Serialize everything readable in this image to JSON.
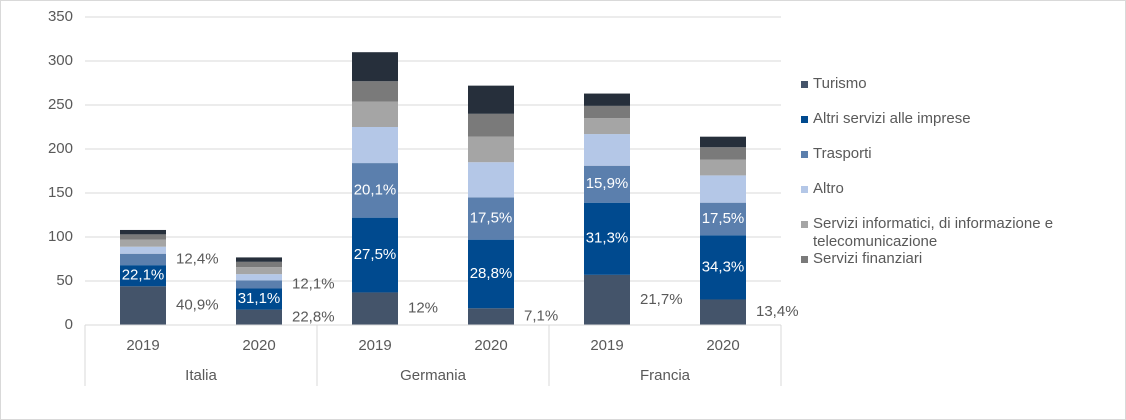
{
  "chart_data": {
    "type": "stacked-bar",
    "categories": [
      "2019",
      "2020",
      "2019",
      "2020",
      "2019",
      "2020"
    ],
    "groups": [
      "Italia",
      "Germania",
      "Francia"
    ],
    "ylim": [
      0,
      350
    ],
    "yticks": [
      0,
      50,
      100,
      150,
      200,
      250,
      300,
      350
    ],
    "grid": true,
    "series": [
      {
        "name": "Turismo",
        "color": "#44546a",
        "values": [
          44,
          17.5,
          37,
          19,
          57,
          29
        ],
        "labels": [
          "40,9%",
          "22,8%",
          "12%",
          "7,1%",
          "21,7%",
          "13,4%"
        ]
      },
      {
        "name": "Altri servizi alle imprese",
        "color": "#004a8f",
        "values": [
          24,
          24,
          85,
          78,
          82,
          73
        ],
        "labels": [
          "22,1%",
          "31,1%",
          "27,5%",
          "28,8%",
          "31,3%",
          "34,3%"
        ]
      },
      {
        "name": "Trasporti",
        "color": "#5b7fad",
        "values": [
          13,
          9.3,
          62,
          48,
          42,
          37
        ],
        "labels": [
          "12,4%",
          "12,1%",
          "20,1%",
          "17,5%",
          "15,9%",
          "17,5%"
        ]
      },
      {
        "name": "Altro",
        "color": "#b4c7e7",
        "values": [
          8,
          7,
          41,
          40,
          36,
          31
        ]
      },
      {
        "name": "Servizi informatici, di informazione e telecomunicazione",
        "color": "#a5a5a5",
        "values": [
          8,
          8,
          29,
          29,
          18,
          18
        ]
      },
      {
        "name": "Servizi finanziari",
        "color": "#7a7a7a",
        "values": [
          6,
          6,
          23,
          26,
          14,
          14
        ]
      },
      {
        "color": "#262f3b",
        "values": [
          5,
          5,
          33,
          32,
          14,
          12
        ]
      }
    ]
  }
}
